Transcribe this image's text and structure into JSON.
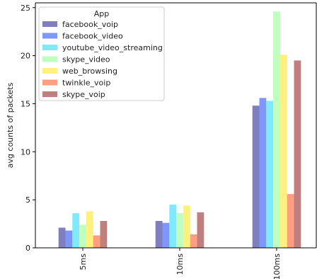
{
  "chart_data": {
    "type": "bar",
    "categories": [
      "5ms",
      "10ms",
      "100ms"
    ],
    "xlabel": "",
    "ylabel": "avg counts of packets",
    "ylim": [
      0,
      25.5
    ],
    "yticks": [
      0,
      5,
      10,
      15,
      20,
      25
    ],
    "grid": false,
    "legend": {
      "title": "App",
      "placement": "upper-left"
    },
    "series": [
      {
        "name": "facebook_voip",
        "color": "#7f7fbf",
        "values": [
          2.1,
          2.8,
          14.8
        ]
      },
      {
        "name": "facebook_video",
        "color": "#7f96ff",
        "values": [
          1.8,
          2.6,
          15.6
        ]
      },
      {
        "name": "youtube_video_streaming",
        "color": "#80e8ff",
        "values": [
          3.6,
          4.5,
          15.3
        ]
      },
      {
        "name": "skype_video",
        "color": "#bfffbf",
        "values": [
          2.4,
          3.6,
          24.6
        ]
      },
      {
        "name": "web_browsing",
        "color": "#fff080",
        "values": [
          3.8,
          4.4,
          20.1
        ]
      },
      {
        "name": "twinkle_voip",
        "color": "#ff9f7f",
        "values": [
          1.3,
          1.4,
          5.6
        ]
      },
      {
        "name": "skype_voip",
        "color": "#bf7f7f",
        "values": [
          2.8,
          3.7,
          19.5
        ]
      }
    ]
  }
}
